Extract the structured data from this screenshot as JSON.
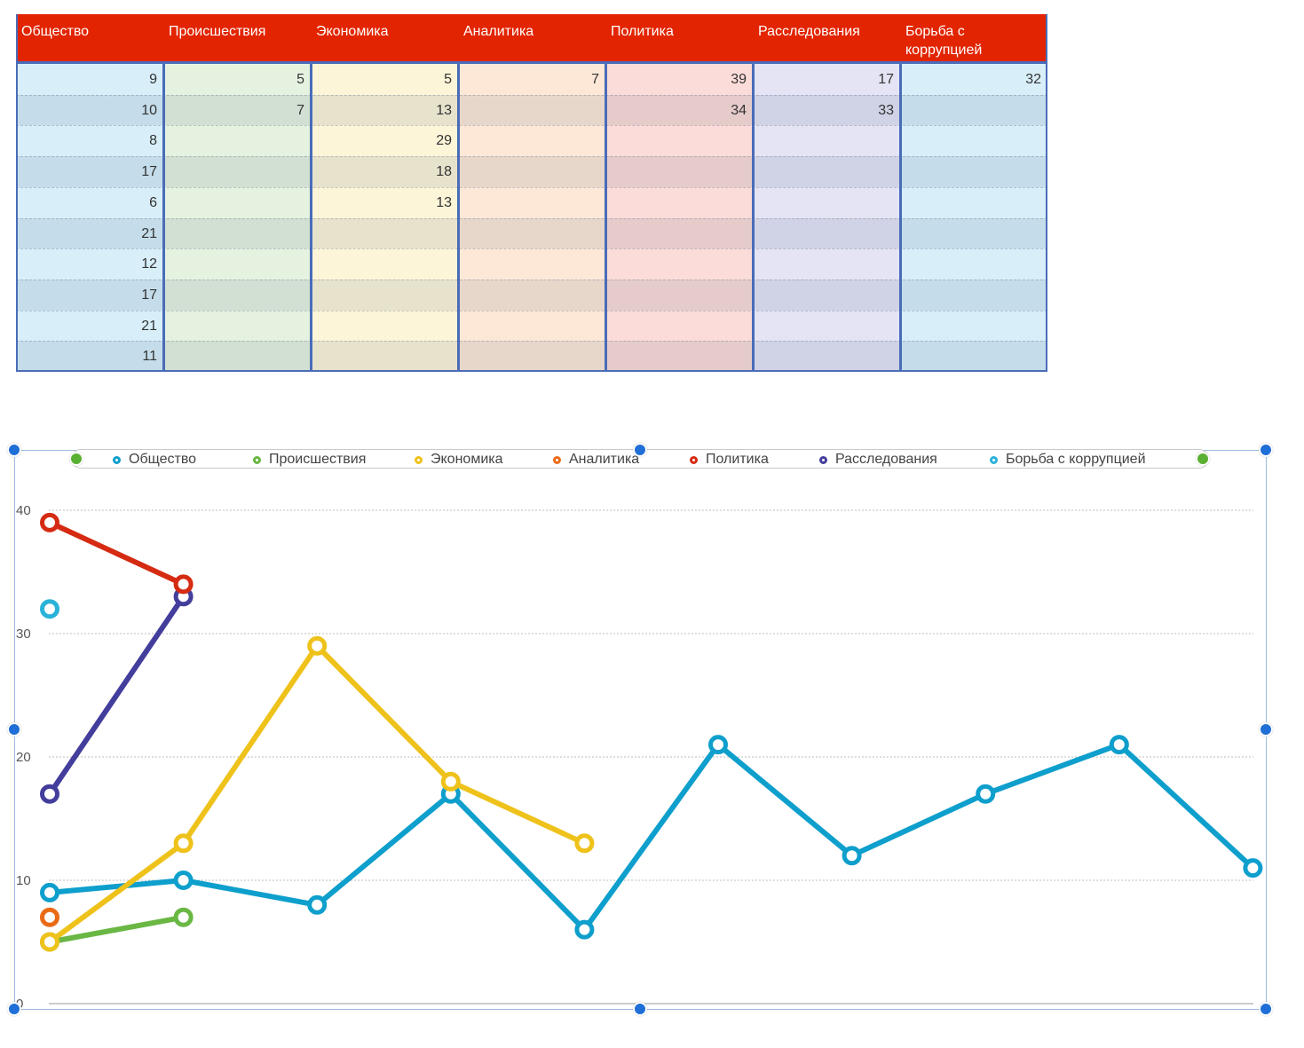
{
  "table": {
    "headers": [
      "Общество",
      "Происшествия",
      "Экономика",
      "Аналитика",
      "Политика",
      "Расследования",
      "Борьба с коррупцией"
    ],
    "columns": [
      [
        "9",
        "10",
        "8",
        "17",
        "6",
        "21",
        "12",
        "17",
        "21",
        "11"
      ],
      [
        "5",
        "7",
        "",
        "",
        "",
        "",
        "",
        "",
        "",
        ""
      ],
      [
        "5",
        "13",
        "29",
        "18",
        "13",
        "",
        "",
        "",
        "",
        ""
      ],
      [
        "7",
        "",
        "",
        "",
        "",
        "",
        "",
        "",
        "",
        ""
      ],
      [
        "39",
        "34",
        "",
        "",
        "",
        "",
        "",
        "",
        "",
        ""
      ],
      [
        "17",
        "33",
        "",
        "",
        "",
        "",
        "",
        "",
        "",
        ""
      ],
      [
        "32",
        "",
        "",
        "",
        "",
        "",
        "",
        "",
        "",
        ""
      ]
    ],
    "column_colors": [
      "#d8effa",
      "#e5f2e0",
      "#fdf5d8",
      "#fde8d8",
      "#fbdcd8",
      "#e4e4f4",
      "#d8effa"
    ]
  },
  "chart_data": {
    "type": "line",
    "x": [
      1,
      2,
      3,
      4,
      5,
      6,
      7,
      8,
      9,
      10
    ],
    "ylim": [
      0,
      40
    ],
    "yticks": [
      "0",
      "10",
      "20",
      "30",
      "40"
    ],
    "grid": true,
    "legend": "top",
    "series": [
      {
        "name": "Общество",
        "color": "#0e9fcc",
        "values": [
          9,
          10,
          8,
          17,
          6,
          21,
          12,
          17,
          21,
          11
        ]
      },
      {
        "name": "Происшествия",
        "color": "#6ab744",
        "values": [
          5,
          7,
          null,
          null,
          null,
          null,
          null,
          null,
          null,
          null
        ]
      },
      {
        "name": "Экономика",
        "color": "#eec21a",
        "values": [
          5,
          13,
          29,
          18,
          13,
          null,
          null,
          null,
          null,
          null
        ]
      },
      {
        "name": "Аналитика",
        "color": "#ea6b16",
        "values": [
          7,
          null,
          null,
          null,
          null,
          null,
          null,
          null,
          null,
          null
        ]
      },
      {
        "name": "Политика",
        "color": "#d52b12",
        "values": [
          39,
          34,
          null,
          null,
          null,
          null,
          null,
          null,
          null,
          null
        ]
      },
      {
        "name": "Расследования",
        "color": "#433d9c",
        "values": [
          17,
          33,
          null,
          null,
          null,
          null,
          null,
          null,
          null,
          null
        ]
      },
      {
        "name": "Борьба с коррупцией",
        "color": "#2ab3d9",
        "values": [
          32,
          null,
          null,
          null,
          null,
          null,
          null,
          null,
          null,
          null
        ]
      }
    ]
  }
}
